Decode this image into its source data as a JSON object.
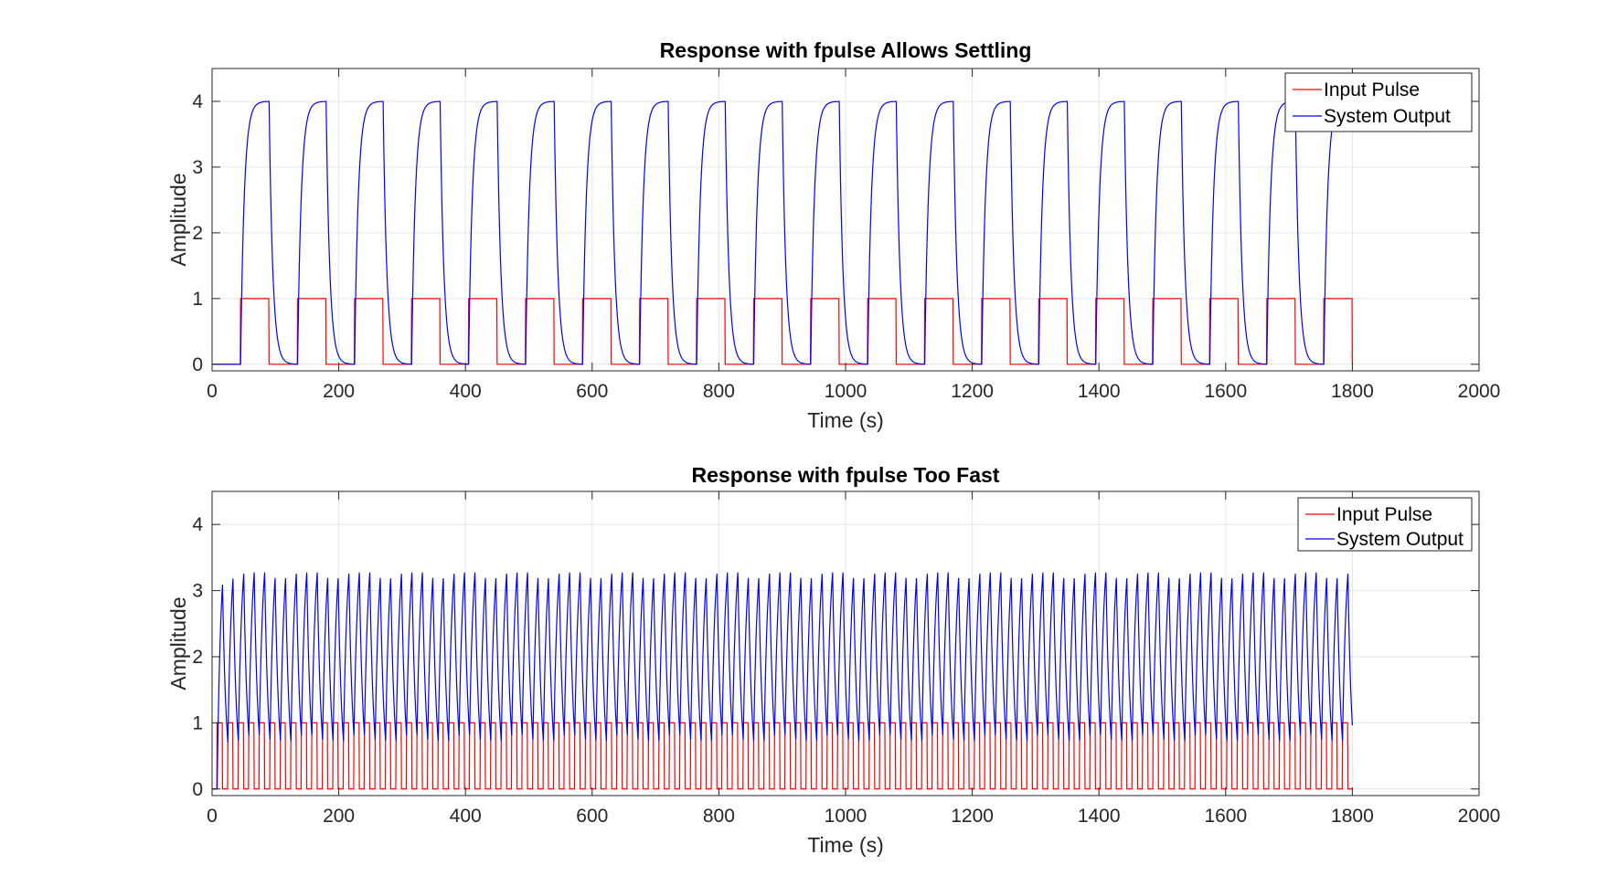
{
  "chart_data": [
    {
      "type": "line",
      "title": "Response with fpulse Allows Settling",
      "xlabel": "Time (s)",
      "ylabel": "Amplitude",
      "xlim": [
        0,
        2000
      ],
      "ylim": [
        -0.1,
        4.5
      ],
      "xticks": [
        0,
        200,
        400,
        600,
        800,
        1000,
        1200,
        1400,
        1600,
        1800,
        2000
      ],
      "yticks": [
        0,
        1,
        2,
        3,
        4
      ],
      "grid": true,
      "legend_position": "top-right",
      "pulse": {
        "start": 45,
        "period": 90,
        "width": 45,
        "amplitude": 1,
        "end": 1800
      },
      "response": {
        "gain": 4,
        "time_constant": 6
      },
      "series": [
        {
          "name": "Input Pulse",
          "color": "#ff0000"
        },
        {
          "name": "System Output",
          "color": "#0000ff"
        }
      ]
    },
    {
      "type": "line",
      "title": "Response with fpulse Too Fast",
      "xlabel": "Time (s)",
      "ylabel": "Amplitude",
      "xlim": [
        0,
        2000
      ],
      "ylim": [
        -0.1,
        4.5
      ],
      "xticks": [
        0,
        200,
        400,
        600,
        800,
        1000,
        1200,
        1400,
        1600,
        1800,
        2000
      ],
      "yticks": [
        0,
        1,
        2,
        3,
        4
      ],
      "grid": true,
      "legend_position": "top-right",
      "pulse": {
        "start": 8,
        "period": 16.6,
        "width": 8.3,
        "amplitude": 1,
        "end": 1800
      },
      "response": {
        "gain": 4,
        "time_constant": 6
      },
      "series": [
        {
          "name": "Input Pulse",
          "color": "#ff0000"
        },
        {
          "name": "System Output",
          "color": "#0000ff"
        }
      ]
    }
  ]
}
